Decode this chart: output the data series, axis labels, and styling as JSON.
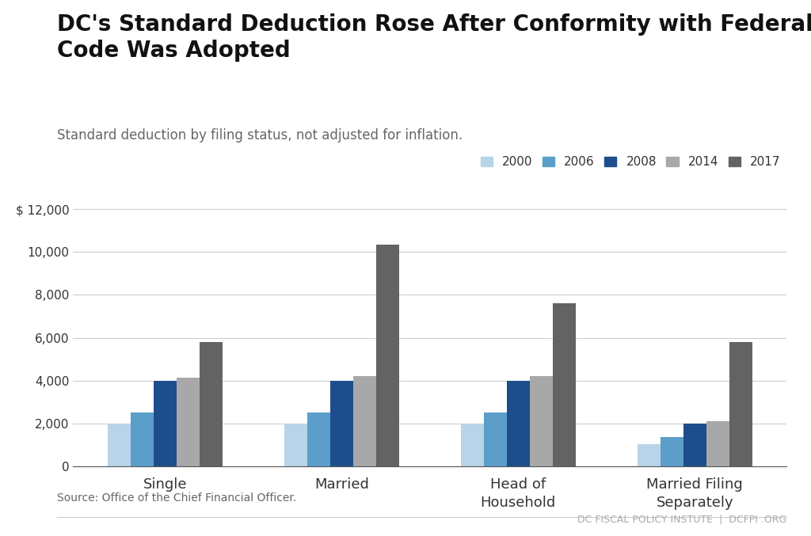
{
  "title": "DC's Standard Deduction Rose After Conformity with Federal Tax\nCode Was Adopted",
  "subtitle": "Standard deduction by filing status, not adjusted for inflation.",
  "source": "Source: Office of the Chief Financial Officer.",
  "footer": "DC FISCAL POLICY INSTUTE  |  DCFPI .ORG",
  "categories": [
    "Single",
    "Married",
    "Head of\nHousehold",
    "Married Filing\nSeparately"
  ],
  "years": [
    "2000",
    "2006",
    "2008",
    "2014",
    "2017"
  ],
  "colors": [
    "#b8d4e8",
    "#5b9ec9",
    "#1e4d8c",
    "#a8a8a8",
    "#636363"
  ],
  "data": [
    [
      2000,
      2500,
      4000,
      4150,
      5800
    ],
    [
      2000,
      2500,
      4000,
      4200,
      10350
    ],
    [
      2000,
      2500,
      4000,
      4200,
      7600
    ],
    [
      1050,
      1350,
      2000,
      2100,
      5800
    ]
  ],
  "ylim": [
    0,
    12500
  ],
  "yticks": [
    0,
    2000,
    4000,
    6000,
    8000,
    10000,
    12000
  ],
  "ytick_labels": [
    "0",
    "2,000",
    "4,000",
    "6,000",
    "8,000",
    "10,000",
    "$ 12,000"
  ],
  "background_color": "#ffffff",
  "grid_color": "#cccccc",
  "title_fontsize": 20,
  "subtitle_fontsize": 12,
  "tick_fontsize": 11,
  "legend_fontsize": 11,
  "source_fontsize": 10
}
